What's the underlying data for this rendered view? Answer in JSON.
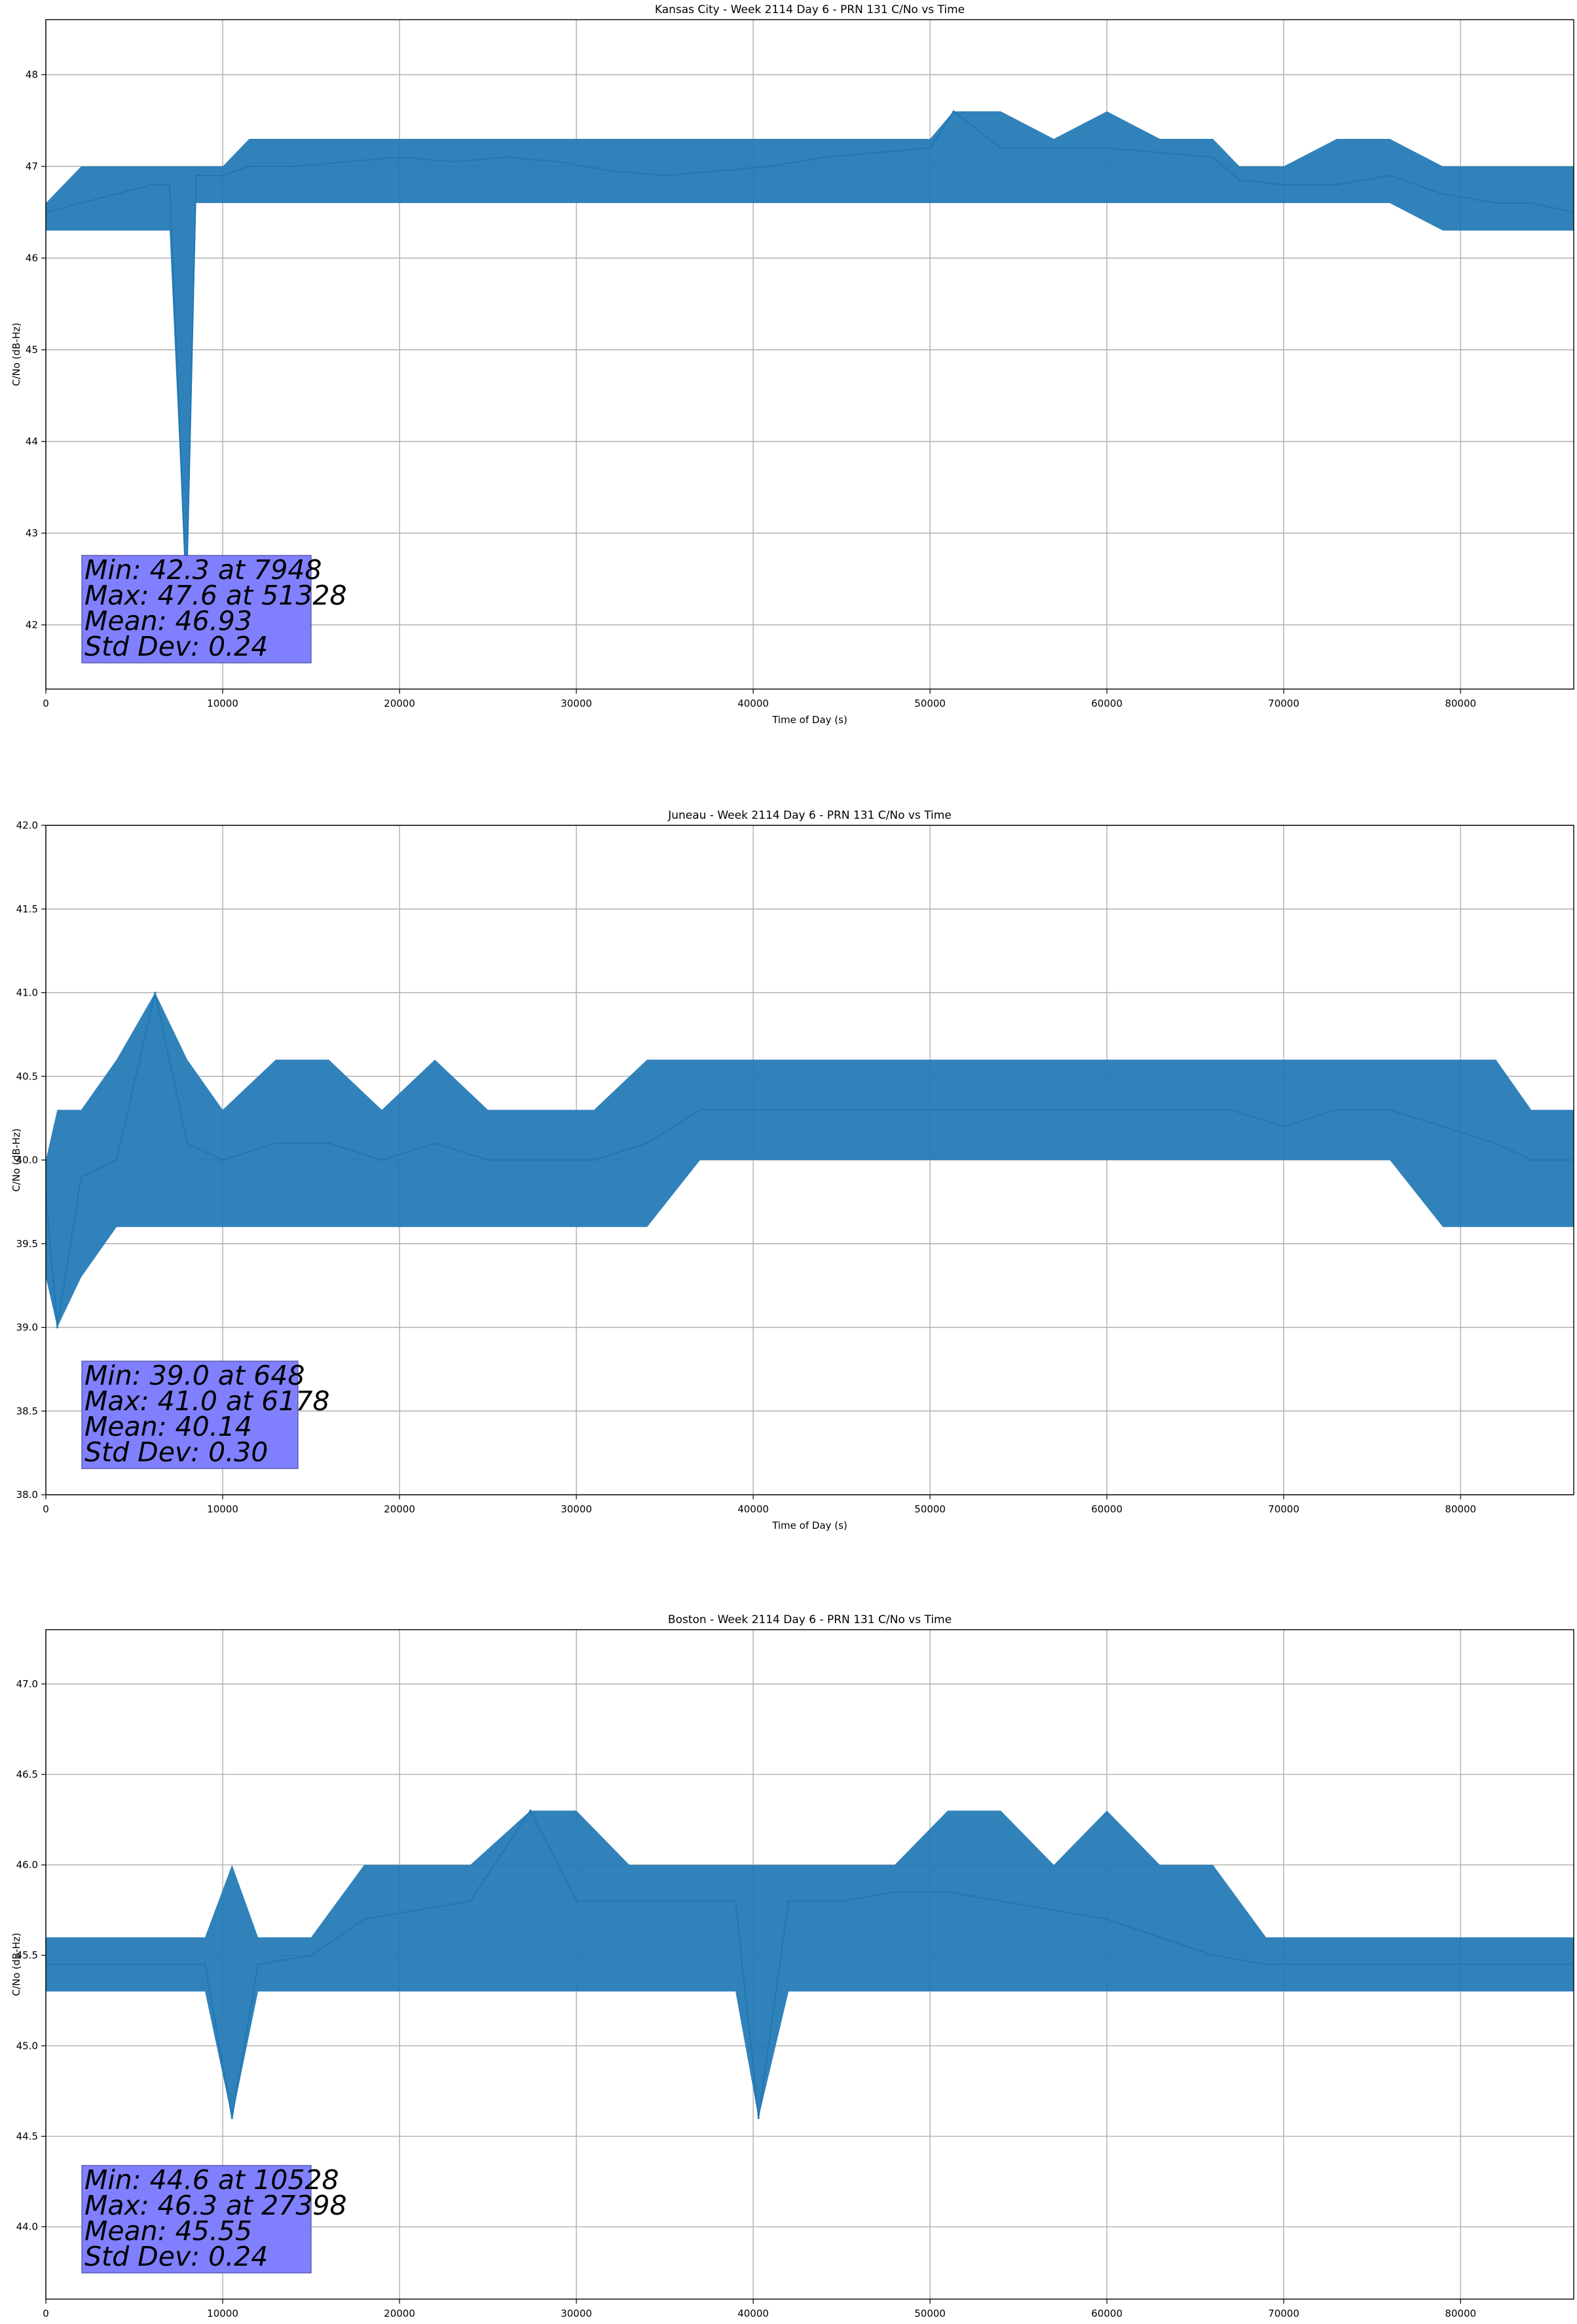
{
  "chart_data": [
    {
      "type": "line",
      "title": "Kansas City - Week 2114 Day 6 - PRN 131 C/No vs Time",
      "xlabel": "Time of Day (s)",
      "ylabel": "C/No (dB-Hz)",
      "xlim": [
        0,
        86400
      ],
      "ylim": [
        41.3,
        48.6
      ],
      "xticks": [
        0,
        10000,
        20000,
        30000,
        40000,
        50000,
        60000,
        70000,
        80000
      ],
      "xtick_labels": [
        "0",
        "10000",
        "20000",
        "30000",
        "40000",
        "50000",
        "60000",
        "70000",
        "80000"
      ],
      "yticks": [
        42,
        43,
        44,
        45,
        46,
        47,
        48
      ],
      "ytick_labels": [
        "42",
        "43",
        "44",
        "45",
        "46",
        "47",
        "48"
      ],
      "grid": true,
      "color": "#1f77b4",
      "series": [
        {
          "name": "C/No",
          "x": [
            0,
            2000,
            4000,
            6000,
            7000,
            7948,
            8500,
            10000,
            11500,
            14000,
            17000,
            20000,
            23000,
            26000,
            29000,
            32000,
            35000,
            38000,
            41000,
            44000,
            47000,
            50000,
            51328,
            54000,
            57000,
            60000,
            63000,
            66000,
            67500,
            70000,
            73000,
            76000,
            79000,
            82000,
            84000,
            86400
          ],
          "values": [
            46.5,
            46.6,
            46.7,
            46.8,
            46.8,
            42.3,
            46.9,
            46.9,
            47.0,
            47.0,
            47.05,
            47.1,
            47.05,
            47.1,
            47.05,
            46.95,
            46.9,
            46.95,
            47.0,
            47.1,
            47.15,
            47.2,
            47.6,
            47.2,
            47.2,
            47.2,
            47.15,
            47.1,
            46.85,
            46.8,
            46.8,
            46.9,
            46.7,
            46.6,
            46.6,
            46.5
          ],
          "band_low": [
            46.3,
            46.3,
            46.3,
            46.3,
            46.3,
            42.3,
            46.6,
            46.6,
            46.6,
            46.6,
            46.6,
            46.6,
            46.6,
            46.6,
            46.6,
            46.6,
            46.6,
            46.6,
            46.6,
            46.6,
            46.6,
            46.6,
            46.6,
            46.6,
            46.6,
            46.6,
            46.6,
            46.6,
            46.6,
            46.6,
            46.6,
            46.6,
            46.3,
            46.3,
            46.3,
            46.3
          ],
          "band_high": [
            46.6,
            47.0,
            47.0,
            47.0,
            47.0,
            47.0,
            47.0,
            47.0,
            47.3,
            47.3,
            47.3,
            47.3,
            47.3,
            47.3,
            47.3,
            47.3,
            47.3,
            47.3,
            47.3,
            47.3,
            47.3,
            47.3,
            47.6,
            47.6,
            47.3,
            47.6,
            47.3,
            47.3,
            47.0,
            47.0,
            47.3,
            47.3,
            47.0,
            47.0,
            47.0,
            47.0
          ]
        }
      ],
      "stats": {
        "min": "Min: 42.3 at 7948",
        "max": "Max: 47.6 at 51328",
        "mean": "Mean: 46.93",
        "std": "Std Dev: 0.24"
      },
      "stats_box_color": "#8080ff"
    },
    {
      "type": "line",
      "title": "Juneau - Week 2114 Day 6 - PRN 131 C/No vs Time",
      "xlabel": "Time of Day (s)",
      "ylabel": "C/No (dB-Hz)",
      "xlim": [
        0,
        86400
      ],
      "ylim": [
        38.0,
        42.0
      ],
      "xticks": [
        0,
        10000,
        20000,
        30000,
        40000,
        50000,
        60000,
        70000,
        80000
      ],
      "xtick_labels": [
        "0",
        "10000",
        "20000",
        "30000",
        "40000",
        "50000",
        "60000",
        "70000",
        "80000"
      ],
      "yticks": [
        38.0,
        38.5,
        39.0,
        39.5,
        40.0,
        40.5,
        41.0,
        41.5,
        42.0
      ],
      "ytick_labels": [
        "38.0",
        "38.5",
        "39.0",
        "39.5",
        "40.0",
        "40.5",
        "41.0",
        "41.5",
        "42.0"
      ],
      "grid": true,
      "color": "#1f77b4",
      "series": [
        {
          "name": "C/No",
          "x": [
            0,
            648,
            2000,
            4000,
            6178,
            8000,
            10000,
            13000,
            16000,
            19000,
            22000,
            25000,
            28000,
            31000,
            34000,
            37000,
            40000,
            43000,
            46000,
            49000,
            52000,
            55000,
            58000,
            61000,
            64000,
            67000,
            70000,
            73000,
            76000,
            79000,
            82000,
            84000,
            86400
          ],
          "values": [
            39.8,
            39.0,
            39.9,
            40.0,
            41.0,
            40.1,
            40.0,
            40.1,
            40.1,
            40.0,
            40.1,
            40.0,
            40.0,
            40.0,
            40.1,
            40.3,
            40.3,
            40.3,
            40.3,
            40.3,
            40.3,
            40.3,
            40.3,
            40.3,
            40.3,
            40.3,
            40.2,
            40.3,
            40.3,
            40.2,
            40.1,
            40.0,
            40.0
          ],
          "band_low": [
            39.3,
            39.0,
            39.3,
            39.6,
            39.6,
            39.6,
            39.6,
            39.6,
            39.6,
            39.6,
            39.6,
            39.6,
            39.6,
            39.6,
            39.6,
            40.0,
            40.0,
            40.0,
            40.0,
            40.0,
            40.0,
            40.0,
            40.0,
            40.0,
            40.0,
            40.0,
            40.0,
            40.0,
            40.0,
            39.6,
            39.6,
            39.6,
            39.6
          ],
          "band_high": [
            40.0,
            40.3,
            40.3,
            40.6,
            41.0,
            40.6,
            40.3,
            40.6,
            40.6,
            40.3,
            40.6,
            40.3,
            40.3,
            40.3,
            40.6,
            40.6,
            40.6,
            40.6,
            40.6,
            40.6,
            40.6,
            40.6,
            40.6,
            40.6,
            40.6,
            40.6,
            40.6,
            40.6,
            40.6,
            40.6,
            40.6,
            40.3,
            40.3
          ]
        }
      ],
      "stats": {
        "min": "Min: 39.0 at 648",
        "max": "Max: 41.0 at 6178",
        "mean": "Mean: 40.14",
        "std": "Std Dev: 0.30"
      },
      "stats_box_color": "#8080ff"
    },
    {
      "type": "line",
      "title": "Boston - Week 2114 Day 6 - PRN 131 C/No vs Time",
      "xlabel": "Time of Day (s)",
      "ylabel": "C/No (dB-Hz)",
      "xlim": [
        0,
        86400
      ],
      "ylim": [
        43.6,
        47.3
      ],
      "xticks": [
        0,
        10000,
        20000,
        30000,
        40000,
        50000,
        60000,
        70000,
        80000
      ],
      "xtick_labels": [
        "0",
        "10000",
        "20000",
        "30000",
        "40000",
        "50000",
        "60000",
        "70000",
        "80000"
      ],
      "yticks": [
        44.0,
        44.5,
        45.0,
        45.5,
        46.0,
        46.5,
        47.0
      ],
      "ytick_labels": [
        "44.0",
        "44.5",
        "45.0",
        "45.5",
        "46.0",
        "46.5",
        "47.0"
      ],
      "grid": true,
      "color": "#1f77b4",
      "series": [
        {
          "name": "C/No",
          "x": [
            0,
            3000,
            6000,
            9000,
            10528,
            12000,
            15000,
            18000,
            21000,
            24000,
            27398,
            30000,
            33000,
            36000,
            39000,
            40300,
            42000,
            45000,
            48000,
            51000,
            54000,
            57000,
            60000,
            63000,
            66000,
            69000,
            72000,
            75000,
            78000,
            81000,
            84000,
            86400
          ],
          "values": [
            45.45,
            45.45,
            45.45,
            45.45,
            44.6,
            45.45,
            45.5,
            45.7,
            45.75,
            45.8,
            46.3,
            45.8,
            45.8,
            45.8,
            45.8,
            44.6,
            45.8,
            45.8,
            45.85,
            45.85,
            45.8,
            45.75,
            45.7,
            45.6,
            45.5,
            45.45,
            45.45,
            45.45,
            45.45,
            45.45,
            45.45,
            45.45
          ],
          "band_low": [
            45.3,
            45.3,
            45.3,
            45.3,
            44.6,
            45.3,
            45.3,
            45.3,
            45.3,
            45.3,
            45.3,
            45.3,
            45.3,
            45.3,
            45.3,
            44.6,
            45.3,
            45.3,
            45.3,
            45.3,
            45.3,
            45.3,
            45.3,
            45.3,
            45.3,
            45.3,
            45.3,
            45.3,
            45.3,
            45.3,
            45.3,
            45.3
          ],
          "band_high": [
            45.6,
            45.6,
            45.6,
            45.6,
            46.0,
            45.6,
            45.6,
            46.0,
            46.0,
            46.0,
            46.3,
            46.3,
            46.0,
            46.0,
            46.0,
            46.0,
            46.0,
            46.0,
            46.0,
            46.3,
            46.3,
            46.0,
            46.3,
            46.0,
            46.0,
            45.6,
            45.6,
            45.6,
            45.6,
            45.6,
            45.6,
            45.6
          ]
        }
      ],
      "stats": {
        "min": "Min: 44.6 at 10528",
        "max": "Max: 46.3 at 27398",
        "mean": "Mean: 45.55",
        "std": "Std Dev: 0.24"
      },
      "stats_box_color": "#8080ff"
    }
  ]
}
